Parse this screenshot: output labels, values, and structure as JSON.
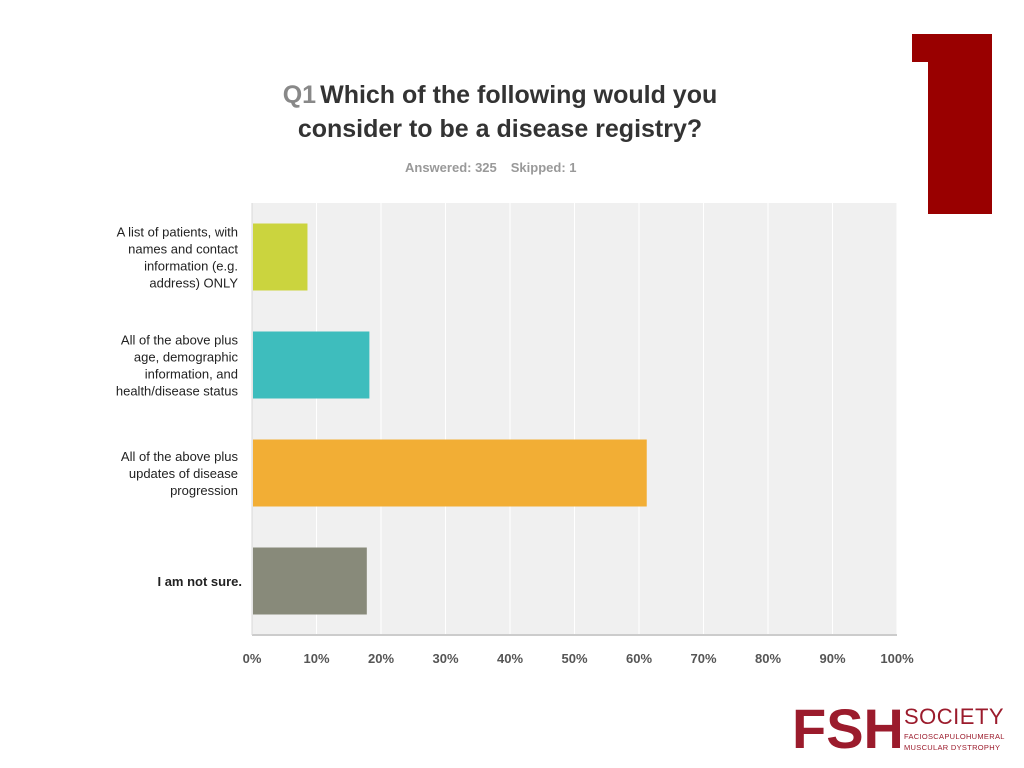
{
  "slide_number": "1",
  "title": {
    "qnum": "Q1",
    "text": "Which of the following would you consider to be a disease registry?"
  },
  "stats": {
    "answered": "Answered: 325",
    "skipped": "Skipped: 1"
  },
  "chart_data": {
    "type": "bar",
    "orientation": "horizontal",
    "categories": [
      "A list of patients, with names and contact information (e.g. address) ONLY",
      "All of the above plus age, demographic information, and health/disease status",
      "All of the above plus updates of disease progression",
      "I am not sure."
    ],
    "category_lines": [
      [
        "A list of patients, with",
        "names and contact",
        "information (e.g.",
        "address) ONLY"
      ],
      [
        "All of the above plus",
        "age, demographic",
        "information, and",
        "health/disease status"
      ],
      [
        "All of the above plus",
        "updates of disease",
        "progression"
      ],
      [
        "I am not sure."
      ]
    ],
    "values": [
      8.6,
      18.2,
      61.2,
      17.8
    ],
    "colors": [
      "#cbd43e",
      "#3ebdbd",
      "#f2ae35",
      "#888a7a"
    ],
    "xlim": [
      0,
      100
    ],
    "x_ticks": [
      0,
      10,
      20,
      30,
      40,
      50,
      60,
      70,
      80,
      90,
      100
    ],
    "x_tick_labels": [
      "0%",
      "10%",
      "20%",
      "30%",
      "40%",
      "50%",
      "60%",
      "70%",
      "80%",
      "90%",
      "100%"
    ],
    "grid": true,
    "plot_bg": "#f0f0f0"
  },
  "logo": {
    "mark": "FSH",
    "name": "SOCIETY",
    "sub1": "FACIOSCAPULOHUMERAL",
    "sub2": "MUSCULAR DYSTROPHY",
    "color": "#9b1b2c"
  }
}
